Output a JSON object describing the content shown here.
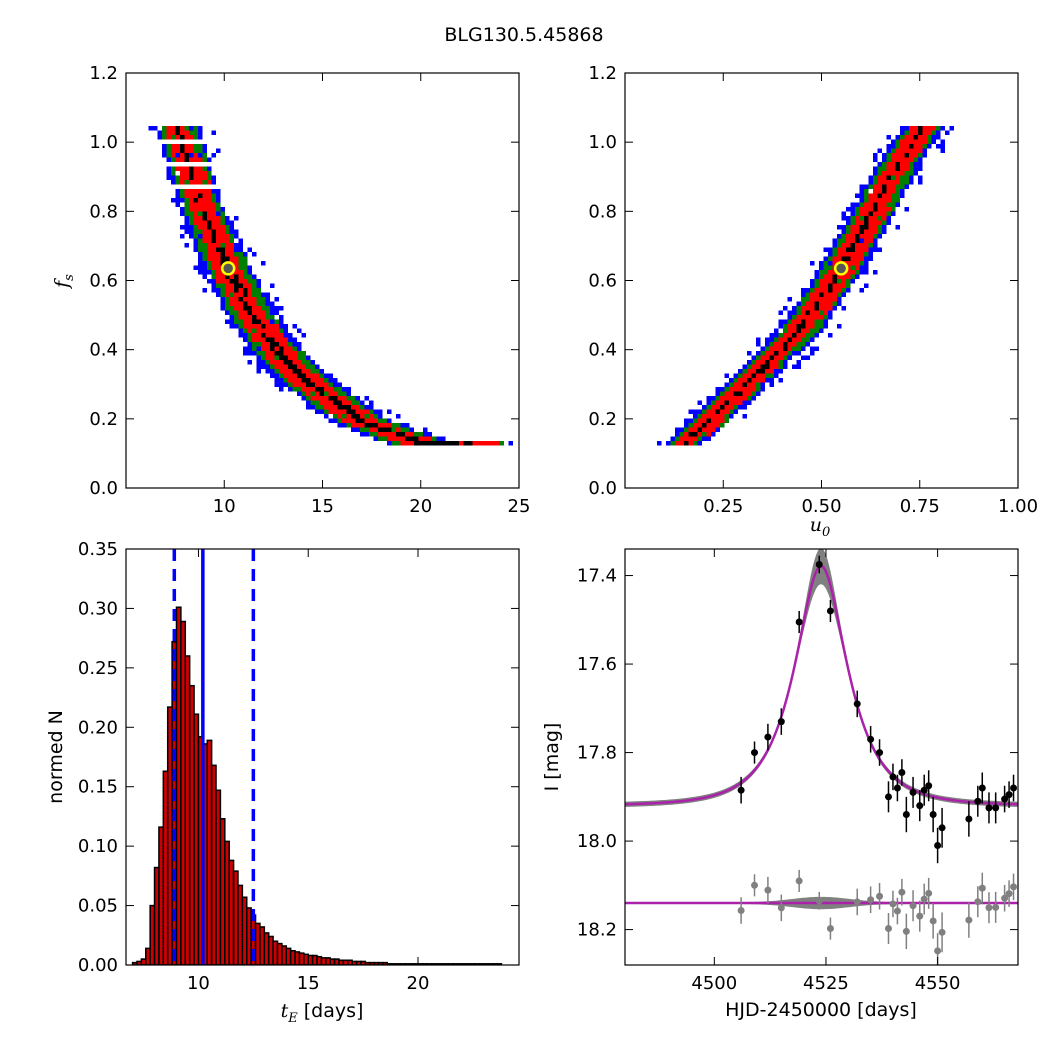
{
  "title": "BLG130.5.45868",
  "colors": {
    "conf_3sigma": "#0000ff",
    "conf_2sigma": "#007f00",
    "conf_1sigma": "#ff0000",
    "conf_best": "#000000",
    "best_marker_fill": "#555555",
    "best_marker_edge": "#ffff00",
    "hist_bar": "#cc0000",
    "median_line": "#0000ff",
    "model": "#aa22aa",
    "model_band": "#808080",
    "data": "#000000",
    "residuals": "#808080"
  },
  "chart_data": [
    {
      "id": "tE_vs_fs",
      "type": "heatmap",
      "xlabel": "",
      "ylabel": "f_s",
      "xlim": [
        5,
        25
      ],
      "ylim": [
        0.0,
        1.2
      ],
      "xticks": [
        "10",
        "15",
        "20",
        "25"
      ],
      "yticks": [
        "0.0",
        "0.2",
        "0.4",
        "0.6",
        "0.8",
        "1.0",
        "1.2"
      ],
      "levels": [
        "3-sigma",
        "2-sigma",
        "1-sigma",
        "densest"
      ],
      "curve": [
        [
          7.6,
          1.05
        ],
        [
          8.7,
          0.85
        ],
        [
          9.7,
          0.7
        ],
        [
          10.2,
          0.635
        ],
        [
          11.5,
          0.5
        ],
        [
          13.0,
          0.38
        ],
        [
          14.5,
          0.3
        ],
        [
          17.0,
          0.2
        ],
        [
          20.0,
          0.135
        ],
        [
          23.0,
          0.13
        ]
      ],
      "best_fit": {
        "x": 10.2,
        "y": 0.635
      },
      "grid": false
    },
    {
      "id": "u0_vs_fs",
      "type": "heatmap",
      "xlabel": "u_0",
      "ylabel": "",
      "xlim": [
        0.0,
        1.0
      ],
      "ylim": [
        0.0,
        1.2
      ],
      "xticks": [
        "0.25",
        "0.50",
        "0.75",
        "1.00"
      ],
      "yticks": [
        "0.0",
        "0.2",
        "0.4",
        "0.6",
        "0.8",
        "1.0",
        "1.2"
      ],
      "levels": [
        "3-sigma",
        "2-sigma",
        "1-sigma",
        "densest"
      ],
      "curve": [
        [
          0.15,
          0.13
        ],
        [
          0.25,
          0.24
        ],
        [
          0.35,
          0.35
        ],
        [
          0.45,
          0.47
        ],
        [
          0.55,
          0.635
        ],
        [
          0.62,
          0.78
        ],
        [
          0.7,
          0.95
        ],
        [
          0.76,
          1.05
        ]
      ],
      "best_fit": {
        "x": 0.55,
        "y": 0.635
      },
      "grid": false
    },
    {
      "id": "tE_histogram",
      "type": "bar",
      "xlabel": "t_E [days]",
      "xlabel_math": "t",
      "xlabel_sub": "E",
      "xlabel_rest": " [days]",
      "ylabel": "normed N",
      "xlim": [
        6.7,
        24.6
      ],
      "ylim": [
        0.0,
        0.35
      ],
      "xticks": [
        "10",
        "15",
        "20"
      ],
      "yticks": [
        "0.00",
        "0.05",
        "0.10",
        "0.15",
        "0.20",
        "0.25",
        "0.30",
        "0.35"
      ],
      "bin_start": 7.0,
      "bin_width": 0.2,
      "values": [
        0.002,
        0.003,
        0.005,
        0.014,
        0.05,
        0.082,
        0.116,
        0.163,
        0.217,
        0.272,
        0.301,
        0.289,
        0.26,
        0.235,
        0.211,
        0.192,
        0.186,
        0.189,
        0.168,
        0.147,
        0.123,
        0.104,
        0.088,
        0.079,
        0.067,
        0.057,
        0.048,
        0.042,
        0.035,
        0.032,
        0.027,
        0.024,
        0.02,
        0.018,
        0.016,
        0.014,
        0.012,
        0.011,
        0.01,
        0.009,
        0.008,
        0.008,
        0.007,
        0.006,
        0.006,
        0.005,
        0.005,
        0.004,
        0.004,
        0.004,
        0.003,
        0.003,
        0.003,
        0.002,
        0.002,
        0.002,
        0.002,
        0.002,
        0.001,
        0.001,
        0.001,
        0.001,
        0.001,
        0.001,
        0.001,
        0.001,
        0.001,
        0.001,
        0.001,
        0.001,
        0.001,
        0.001,
        0.001,
        0.001,
        0.001,
        0.001,
        0.001,
        0.001,
        0.001,
        0.001,
        0.001,
        0.001,
        0.001,
        0.001
      ],
      "median": 10.2,
      "conf_lower": 8.9,
      "conf_upper": 12.5,
      "grid": false
    },
    {
      "id": "light_curve",
      "type": "scatter",
      "xlabel": "HJD-2450000 [days]",
      "ylabel": "I [mag]",
      "xlim": [
        4480,
        4568
      ],
      "ylim": [
        18.28,
        17.34
      ],
      "inverted_y": true,
      "xticks": [
        "4500",
        "4525",
        "4550"
      ],
      "yticks": [
        "17.4",
        "17.6",
        "17.8",
        "18.0",
        "18.2"
      ],
      "model": {
        "t0": 4523.9,
        "tE": 10.2,
        "u0": 0.55,
        "fs": 0.635,
        "baseline": 17.92
      },
      "residual_offset": 18.14,
      "points": [
        {
          "x": 4506,
          "y": 17.885,
          "e": 0.03
        },
        {
          "x": 4509,
          "y": 17.8,
          "e": 0.025
        },
        {
          "x": 4512,
          "y": 17.765,
          "e": 0.03
        },
        {
          "x": 4515,
          "y": 17.73,
          "e": 0.03
        },
        {
          "x": 4519,
          "y": 17.505,
          "e": 0.025
        },
        {
          "x": 4523.5,
          "y": 17.375,
          "e": 0.02
        },
        {
          "x": 4526,
          "y": 17.48,
          "e": 0.025
        },
        {
          "x": 4532,
          "y": 17.69,
          "e": 0.03
        },
        {
          "x": 4535,
          "y": 17.77,
          "e": 0.03
        },
        {
          "x": 4537,
          "y": 17.8,
          "e": 0.03
        },
        {
          "x": 4539,
          "y": 17.9,
          "e": 0.035
        },
        {
          "x": 4540,
          "y": 17.855,
          "e": 0.03
        },
        {
          "x": 4541,
          "y": 17.88,
          "e": 0.03
        },
        {
          "x": 4542,
          "y": 17.845,
          "e": 0.03
        },
        {
          "x": 4543,
          "y": 17.94,
          "e": 0.04
        },
        {
          "x": 4544.5,
          "y": 17.89,
          "e": 0.035
        },
        {
          "x": 4546,
          "y": 17.92,
          "e": 0.035
        },
        {
          "x": 4547,
          "y": 17.885,
          "e": 0.035
        },
        {
          "x": 4548,
          "y": 17.875,
          "e": 0.035
        },
        {
          "x": 4549,
          "y": 17.94,
          "e": 0.04
        },
        {
          "x": 4550,
          "y": 18.01,
          "e": 0.04
        },
        {
          "x": 4551,
          "y": 17.97,
          "e": 0.045
        },
        {
          "x": 4557,
          "y": 17.95,
          "e": 0.04
        },
        {
          "x": 4559,
          "y": 17.91,
          "e": 0.035
        },
        {
          "x": 4560,
          "y": 17.88,
          "e": 0.035
        },
        {
          "x": 4561.5,
          "y": 17.925,
          "e": 0.035
        },
        {
          "x": 4563,
          "y": 17.925,
          "e": 0.035
        },
        {
          "x": 4565,
          "y": 17.905,
          "e": 0.03
        },
        {
          "x": 4566,
          "y": 17.895,
          "e": 0.03
        },
        {
          "x": 4567,
          "y": 17.88,
          "e": 0.03
        }
      ],
      "grid": false
    }
  ]
}
